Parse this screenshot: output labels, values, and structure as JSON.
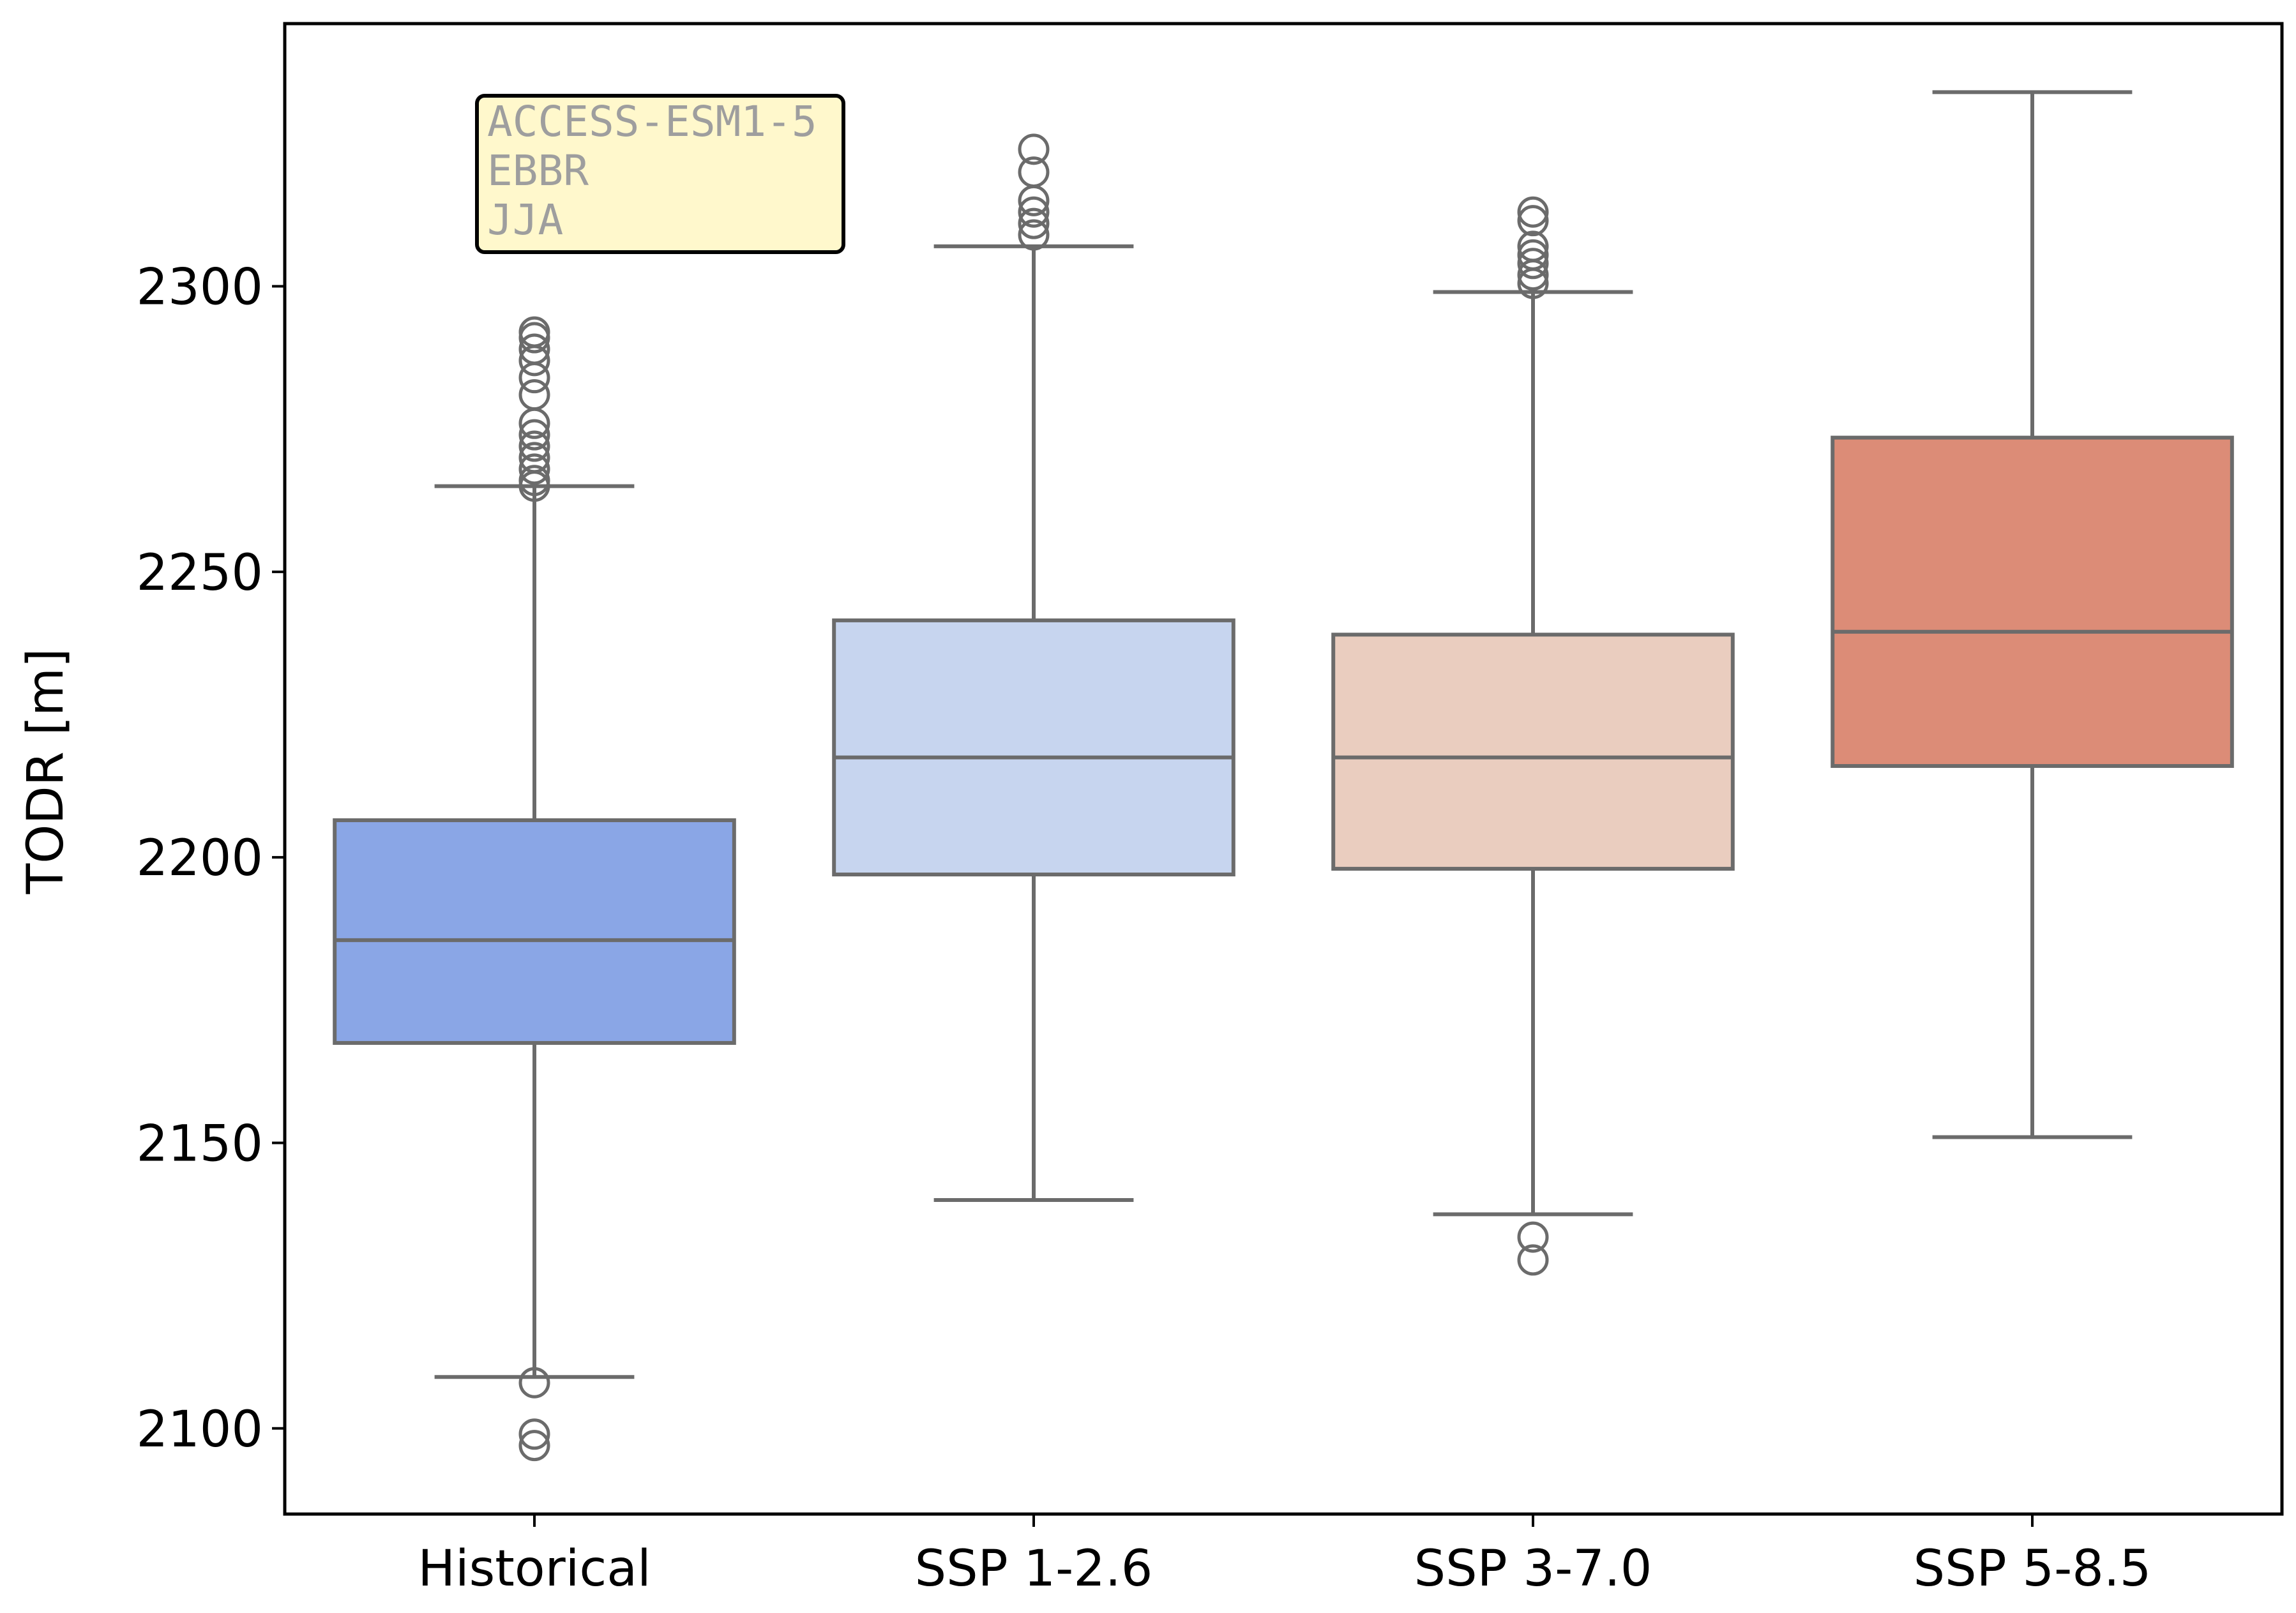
{
  "chart_data": {
    "type": "box",
    "title": "",
    "xlabel": "",
    "ylabel": "TODR [m]",
    "ylim": [
      2085,
      2346
    ],
    "yticks": [
      2100,
      2150,
      2200,
      2250,
      2300
    ],
    "grid": false,
    "annotation": {
      "lines": [
        "ACCESS-ESM1-5",
        "EBBR",
        "JJA"
      ],
      "placement": "top-left"
    },
    "box_edge_color": "#6b6b6b",
    "boxes": [
      {
        "category": "Historical",
        "color": "#8aa6e6",
        "whisker_low": 2109,
        "q1": 2167.5,
        "median": 2185.5,
        "q3": 2206.5,
        "whisker_high": 2265,
        "outliers": [
          2097,
          2099,
          2108,
          2265,
          2266,
          2268,
          2270,
          2272,
          2274,
          2276,
          2281,
          2284,
          2287,
          2289,
          2291,
          2292
        ]
      },
      {
        "category": "SSP 1-2.6",
        "color": "#c7d5ef",
        "whisker_low": 2140,
        "q1": 2197,
        "median": 2217.5,
        "q3": 2241.5,
        "whisker_high": 2307,
        "outliers": [
          2309,
          2311,
          2313,
          2315,
          2320,
          2324
        ]
      },
      {
        "category": "SSP 3-7.0",
        "color": "#eacdbf",
        "whisker_low": 2137.5,
        "q1": 2198,
        "median": 2217.5,
        "q3": 2239,
        "whisker_high": 2299,
        "outliers": [
          2129.5,
          2133.5,
          2300.5,
          2302,
          2304,
          2305.5,
          2307,
          2311.5,
          2313
        ]
      },
      {
        "category": "SSP 5-8.5",
        "color": "#dc8c77",
        "whisker_low": 2151,
        "q1": 2216,
        "median": 2239.5,
        "q3": 2273.5,
        "whisker_high": 2334,
        "outliers": []
      }
    ]
  }
}
